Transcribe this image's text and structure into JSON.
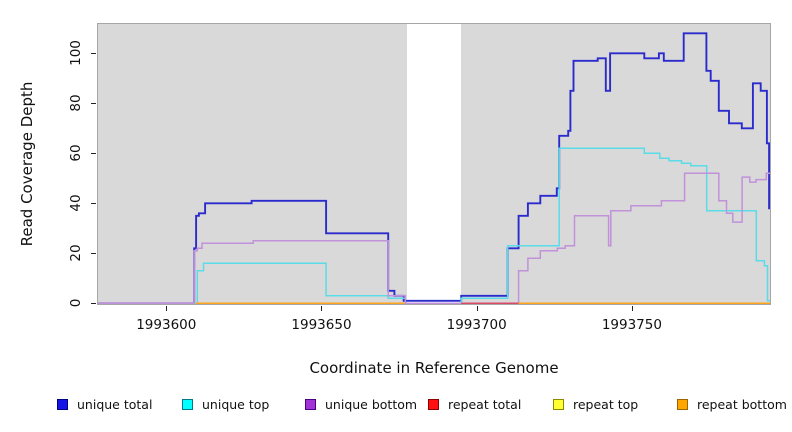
{
  "figure": {
    "x_axis_title": "Coordinate in Reference Genome",
    "y_axis_title": "Read Coverage Depth"
  },
  "chart_data": {
    "type": "line",
    "subtype": "step-coverage",
    "title": "",
    "xlabel": "Coordinate in Reference Genome",
    "ylabel": "Read Coverage Depth",
    "xlim": [
      1993578,
      1993794.5
    ],
    "ylim": [
      0,
      112
    ],
    "x_ticks": [
      1993600,
      1993650,
      1993700,
      1993750
    ],
    "y_ticks": [
      0,
      20,
      40,
      60,
      80,
      100
    ],
    "grid": false,
    "plot_background": "#d9d9d9",
    "masked_region": {
      "x_start": 1993677.5,
      "x_end": 1993695,
      "color": "#ffffff"
    },
    "legend_position": "bottom",
    "series": [
      {
        "name": "unique total",
        "line_color": "#2b2bcd",
        "legend_fill": "#1414e6",
        "legend_border": "#000080",
        "line_width": 1.9,
        "segments": [
          [
            [
              1993578,
              0
            ],
            [
              1993609,
              22
            ],
            [
              1993609.6,
              35
            ],
            [
              1993610.5,
              36
            ],
            [
              1993612.5,
              40
            ],
            [
              1993627.5,
              41
            ],
            [
              1993651.5,
              28
            ],
            [
              1993671.5,
              5
            ],
            [
              1993673.5,
              3
            ],
            [
              1993676.5,
              1
            ],
            [
              1993695,
              3
            ],
            [
              1993710,
              22
            ],
            [
              1993713.5,
              35
            ],
            [
              1993716.5,
              40
            ],
            [
              1993720.5,
              43
            ],
            [
              1993725.8,
              46
            ],
            [
              1993726.6,
              67
            ],
            [
              1993729.5,
              69
            ],
            [
              1993730.2,
              85
            ],
            [
              1993731.2,
              97
            ],
            [
              1993739,
              98
            ],
            [
              1993741.6,
              85
            ],
            [
              1993743,
              100
            ],
            [
              1993754,
              98
            ],
            [
              1993758.7,
              100
            ],
            [
              1993760.3,
              97
            ],
            [
              1993766.7,
              108
            ],
            [
              1993774,
              93
            ],
            [
              1993775.4,
              89
            ],
            [
              1993778,
              77
            ],
            [
              1993781.3,
              72
            ],
            [
              1993785.4,
              70
            ],
            [
              1993789,
              88
            ],
            [
              1993791.5,
              85
            ],
            [
              1993793.5,
              64
            ],
            [
              1993794.2,
              38
            ],
            [
              1993794.5,
              38
            ]
          ]
        ]
      },
      {
        "name": "unique top",
        "line_color": "#5adce8",
        "legend_fill": "#00ffff",
        "legend_border": "#007a8a",
        "line_width": 1.5,
        "segments": [
          [
            [
              1993578,
              0
            ],
            [
              1993610,
              13
            ],
            [
              1993612,
              16
            ],
            [
              1993651.5,
              3
            ],
            [
              1993671.5,
              2
            ],
            [
              1993677,
              0
            ],
            [
              1993695,
              2
            ],
            [
              1993710,
              23
            ],
            [
              1993726.6,
              62
            ],
            [
              1993754,
              60
            ],
            [
              1993759,
              58
            ],
            [
              1993762,
              57
            ],
            [
              1993766,
              56
            ],
            [
              1993769,
              55
            ],
            [
              1993774.1,
              37
            ],
            [
              1993790.1,
              17
            ],
            [
              1993792.7,
              15
            ],
            [
              1993793.7,
              1
            ],
            [
              1993794.5,
              1
            ]
          ]
        ]
      },
      {
        "name": "unique bottom",
        "line_color": "#c191da",
        "legend_fill": "#a133d6",
        "legend_border": "#4b0082",
        "line_width": 1.5,
        "segments": [
          [
            [
              1993578,
              0
            ],
            [
              1993609,
              21
            ],
            [
              1993610,
              22
            ],
            [
              1993611.5,
              24
            ],
            [
              1993628,
              25
            ],
            [
              1993671.5,
              3
            ],
            [
              1993677,
              0
            ],
            [
              1993713.5,
              13
            ],
            [
              1993716.5,
              18
            ],
            [
              1993720.5,
              21
            ],
            [
              1993726,
              22
            ],
            [
              1993728.5,
              23
            ],
            [
              1993731.5,
              35
            ],
            [
              1993742.5,
              23
            ],
            [
              1993743.2,
              37
            ],
            [
              1993749.7,
              39
            ],
            [
              1993759.5,
              41
            ],
            [
              1993767,
              52
            ],
            [
              1993778,
              41
            ],
            [
              1993780.5,
              36
            ],
            [
              1993782.5,
              32.5
            ],
            [
              1993785.5,
              50.5
            ],
            [
              1993788,
              48.5
            ],
            [
              1993790,
              49.5
            ],
            [
              1993793.3,
              52
            ],
            [
              1993794.5,
              52
            ]
          ]
        ]
      },
      {
        "name": "repeat total",
        "line_color": "#d94a68",
        "legend_fill": "#ff1111",
        "legend_border": "#8b0000",
        "line_width": 1.5,
        "segments": [
          [
            [
              1993695,
              0
            ],
            [
              1993794.5,
              0
            ]
          ]
        ]
      },
      {
        "name": "repeat top",
        "line_color": "#f2f22e",
        "legend_fill": "#ffff33",
        "legend_border": "#8a8a00",
        "line_width": 1.5,
        "segments": [
          [
            [
              1993609.5,
              0
            ],
            [
              1993676.8,
              0
            ]
          ],
          [
            [
              1993713.5,
              0
            ],
            [
              1993794.5,
              0
            ]
          ]
        ]
      },
      {
        "name": "repeat bottom",
        "line_color": "#ffa41e",
        "legend_fill": "#ffa500",
        "legend_border": "#9c6500",
        "line_width": 1.5,
        "segments": [
          [
            [
              1993609.5,
              0
            ],
            [
              1993676.8,
              0
            ]
          ],
          [
            [
              1993713.5,
              0
            ],
            [
              1993794.5,
              0
            ]
          ]
        ]
      }
    ]
  }
}
